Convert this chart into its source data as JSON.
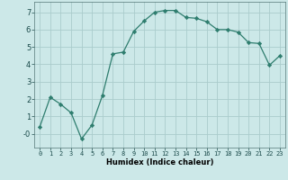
{
  "x": [
    0,
    1,
    2,
    3,
    4,
    5,
    6,
    7,
    8,
    9,
    10,
    11,
    12,
    13,
    14,
    15,
    16,
    17,
    18,
    19,
    20,
    21,
    22,
    23
  ],
  "y": [
    0.4,
    2.1,
    1.7,
    1.2,
    -0.3,
    0.5,
    2.2,
    4.6,
    4.7,
    5.9,
    6.5,
    7.0,
    7.1,
    7.1,
    6.7,
    6.65,
    6.45,
    6.0,
    6.0,
    5.85,
    5.25,
    5.2,
    3.95,
    4.5
  ],
  "line_color": "#2e7d6e",
  "marker": "D",
  "marker_size": 2.2,
  "bg_color": "#cce8e8",
  "grid_color": "#aacccc",
  "xlabel": "Humidex (Indice chaleur)",
  "xlim": [
    -0.5,
    23.5
  ],
  "ylim": [
    -0.8,
    7.6
  ],
  "yticks": [
    0,
    1,
    2,
    3,
    4,
    5,
    6,
    7
  ],
  "ytick_labels": [
    "-0",
    "1",
    "2",
    "3",
    "4",
    "5",
    "6",
    "7"
  ],
  "xticks": [
    0,
    1,
    2,
    3,
    4,
    5,
    6,
    7,
    8,
    9,
    10,
    11,
    12,
    13,
    14,
    15,
    16,
    17,
    18,
    19,
    20,
    21,
    22,
    23
  ],
  "xlabel_fontsize": 6.0,
  "tick_fontsize": 5.0
}
